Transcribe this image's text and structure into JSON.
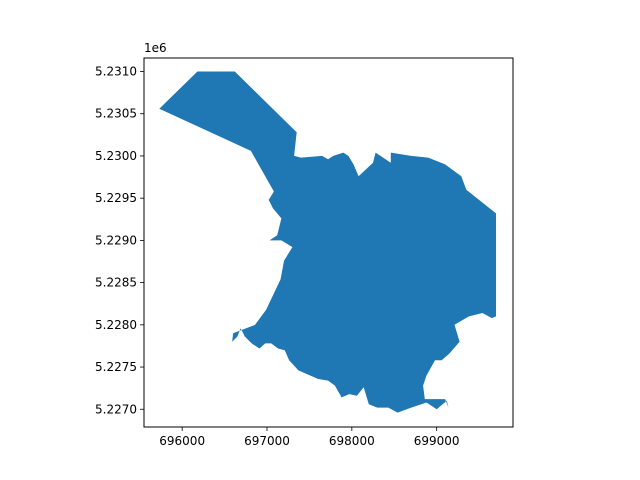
{
  "chart_data": {
    "type": "map",
    "title": "",
    "xlabel": "",
    "ylabel": "",
    "y_offset_label": "1e6",
    "xlim": [
      695550,
      699900
    ],
    "ylim": [
      5.22679,
      5.23116
    ],
    "x_ticks": [
      {
        "value": 696000,
        "label": "696000"
      },
      {
        "value": 697000,
        "label": "697000"
      },
      {
        "value": 698000,
        "label": "698000"
      },
      {
        "value": 699000,
        "label": "699000"
      }
    ],
    "y_ticks": [
      {
        "value": 5.227,
        "label": "5.2270"
      },
      {
        "value": 5.2275,
        "label": "5.2275"
      },
      {
        "value": 5.228,
        "label": "5.2280"
      },
      {
        "value": 5.2285,
        "label": "5.2285"
      },
      {
        "value": 5.229,
        "label": "5.2290"
      },
      {
        "value": 5.2295,
        "label": "5.2295"
      },
      {
        "value": 5.23,
        "label": "5.2300"
      },
      {
        "value": 5.2305,
        "label": "5.2305"
      },
      {
        "value": 5.231,
        "label": "5.2310"
      }
    ],
    "grid": false,
    "fill_color": "#1f77b4",
    "polygon": [
      [
        695730,
        5.23056
      ],
      [
        696180,
        5.231
      ],
      [
        696620,
        5.231
      ],
      [
        697270,
        5.23036
      ],
      [
        697350,
        5.23028
      ],
      [
        697320,
        5.23
      ],
      [
        697400,
        5.22998
      ],
      [
        697650,
        5.23
      ],
      [
        697720,
        5.22996
      ],
      [
        697780,
        5.23
      ],
      [
        697900,
        5.23004
      ],
      [
        697960,
        5.23
      ],
      [
        698020,
        5.2299
      ],
      [
        698080,
        5.22976
      ],
      [
        698250,
        5.22992
      ],
      [
        698280,
        5.23004
      ],
      [
        698460,
        5.22992
      ],
      [
        698460,
        5.23004
      ],
      [
        698700,
        5.23
      ],
      [
        698900,
        5.22998
      ],
      [
        699100,
        5.2299
      ],
      [
        699290,
        5.22976
      ],
      [
        699350,
        5.2296
      ],
      [
        699700,
        5.22932
      ],
      [
        699700,
        5.2281
      ],
      [
        699650,
        5.22808
      ],
      [
        699540,
        5.22814
      ],
      [
        699380,
        5.2281
      ],
      [
        699210,
        5.228
      ],
      [
        699270,
        5.2278
      ],
      [
        699150,
        5.22766
      ],
      [
        699060,
        5.22758
      ],
      [
        698980,
        5.22758
      ],
      [
        698880,
        5.2274
      ],
      [
        698840,
        5.22728
      ],
      [
        698860,
        5.22712
      ],
      [
        699100,
        5.22712
      ],
      [
        699140,
        5.22702
      ],
      [
        699120,
        5.2271
      ],
      [
        699000,
        5.227
      ],
      [
        698880,
        5.22708
      ],
      [
        698700,
        5.22702
      ],
      [
        698540,
        5.22696
      ],
      [
        698430,
        5.22702
      ],
      [
        698300,
        5.22702
      ],
      [
        698200,
        5.22706
      ],
      [
        698140,
        5.22726
      ],
      [
        698060,
        5.22716
      ],
      [
        697970,
        5.22718
      ],
      [
        697880,
        5.22714
      ],
      [
        697800,
        5.22728
      ],
      [
        697720,
        5.22734
      ],
      [
        697600,
        5.22736
      ],
      [
        697370,
        5.22746
      ],
      [
        697260,
        5.22758
      ],
      [
        697210,
        5.2277
      ],
      [
        697130,
        5.22772
      ],
      [
        697050,
        5.22778
      ],
      [
        696980,
        5.22778
      ],
      [
        696910,
        5.22772
      ],
      [
        696820,
        5.22778
      ],
      [
        696740,
        5.22786
      ],
      [
        696690,
        5.22796
      ],
      [
        696650,
        5.22786
      ],
      [
        696590,
        5.2278
      ],
      [
        696600,
        5.2279
      ],
      [
        696860,
        5.228
      ],
      [
        696990,
        5.22818
      ],
      [
        697160,
        5.22854
      ],
      [
        697200,
        5.22876
      ],
      [
        697300,
        5.22892
      ],
      [
        697170,
        5.229
      ],
      [
        697030,
        5.229
      ],
      [
        697120,
        5.22906
      ],
      [
        697170,
        5.22926
      ],
      [
        697070,
        5.22938
      ],
      [
        697020,
        5.22948
      ],
      [
        697070,
        5.22956
      ],
      [
        697080,
        5.22958
      ],
      [
        696810,
        5.23006
      ],
      [
        695730,
        5.23056
      ]
    ]
  }
}
